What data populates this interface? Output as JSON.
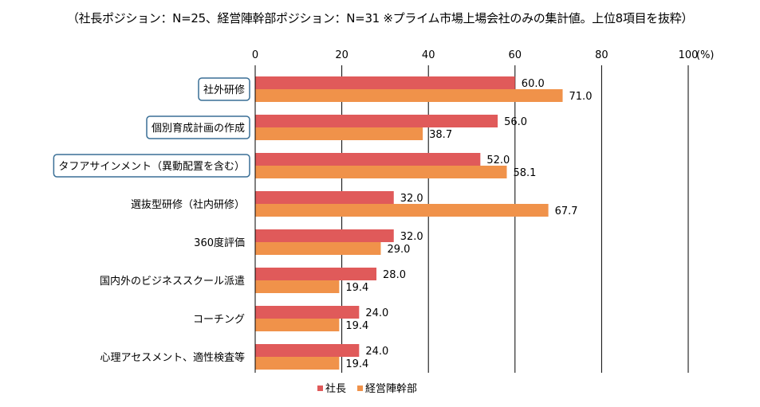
{
  "chart_data": {
    "type": "bar",
    "orientation": "horizontal",
    "title": "（社長ポジション：N=25、経営陣幹部ポジション：N=31 ※プライム市場上場会社のみの集計値。上位8項目を抜粋）",
    "categories": [
      "社外研修",
      "個別育成計画の作成",
      "タフアサインメント（異動配置を含む）",
      "選抜型研修（社内研修）",
      "360度評価",
      "国内外のビジネススクール派遣",
      "コーチング",
      "心理アセスメント、適性検査等"
    ],
    "highlighted_categories": [
      0,
      1,
      2
    ],
    "series": [
      {
        "name": "社長",
        "color": "#e05a5a",
        "values": [
          60.0,
          56.0,
          52.0,
          32.0,
          32.0,
          28.0,
          24.0,
          24.0
        ],
        "labels": [
          "60.0",
          "56.0",
          "52.0",
          "32.0",
          "32.0",
          "28.0",
          "24.0",
          "24.0"
        ]
      },
      {
        "name": "経営陣幹部",
        "color": "#f0924a",
        "values": [
          71.0,
          38.7,
          58.1,
          67.7,
          29.0,
          19.4,
          19.4,
          19.4
        ],
        "labels": [
          "71.0",
          "38.7",
          "58.1",
          "67.7",
          "29.0",
          "19.4",
          "19.4",
          "19.4"
        ]
      }
    ],
    "xlim": [
      0,
      100
    ],
    "xticks": [
      0,
      20,
      40,
      60,
      80,
      100
    ],
    "xtick_labels": [
      "0",
      "20",
      "40",
      "60",
      "80",
      "100"
    ],
    "x_unit": "(%)",
    "grid": true,
    "legend_position": "bottom"
  }
}
